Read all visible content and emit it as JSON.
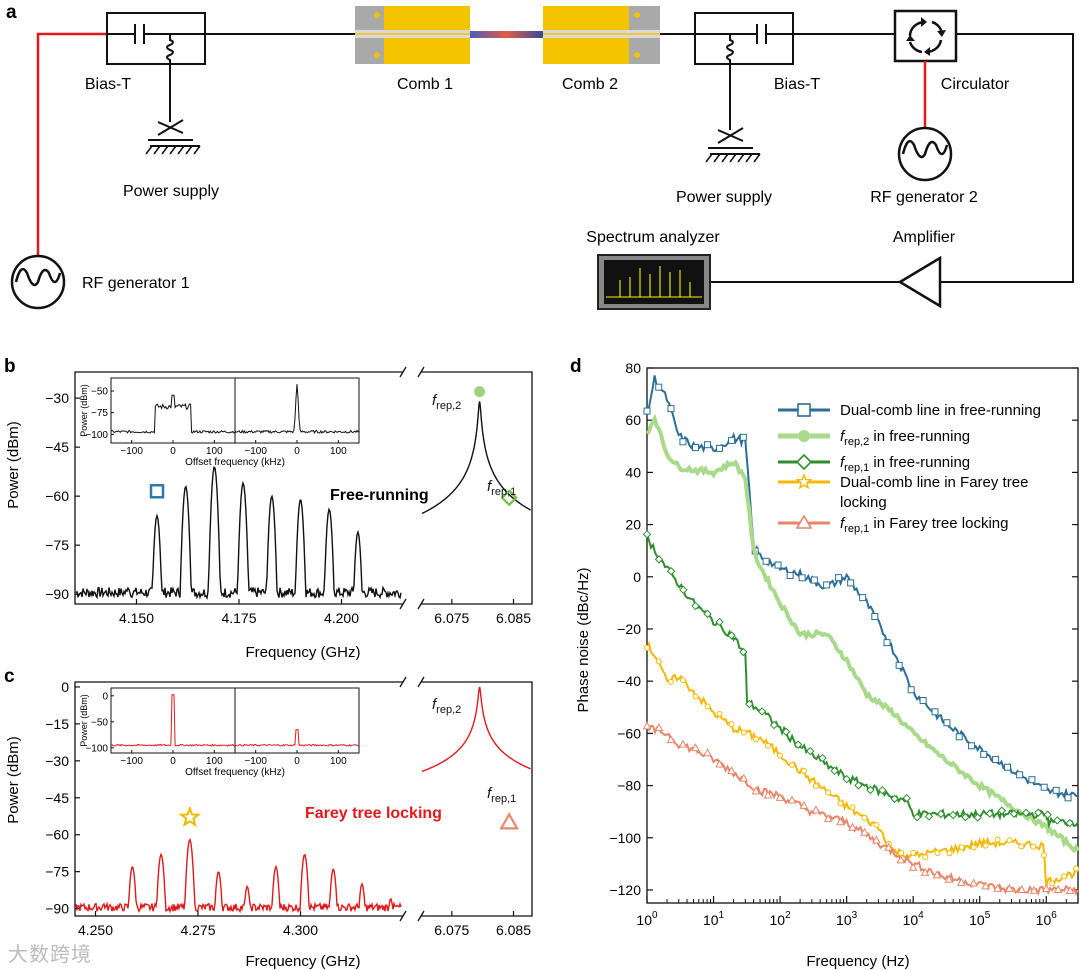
{
  "panel_a": {
    "letter": "a",
    "labels": {
      "bias_t_left": "Bias-T",
      "bias_t_right": "Bias-T",
      "comb1": "Comb 1",
      "comb2": "Comb 2",
      "circulator": "Circulator",
      "power_supply_left": "Power supply",
      "power_supply_right": "Power supply",
      "rf_gen2": "RF generator 2",
      "rf_gen1": "RF generator 1",
      "spectrum_analyzer": "Spectrum analyzer",
      "amplifier": "Amplifier"
    }
  },
  "watermark": "大数跨境",
  "chart_data": [
    {
      "panel": "b",
      "type": "line",
      "annotation": "Free-running",
      "xlabel": "Frequency (GHz)",
      "ylabel": "Power (dBm)",
      "ylim": [
        -93,
        -22
      ],
      "yticks": [
        "-30",
        "-45",
        "-60",
        "-75",
        "-90"
      ],
      "left_segment": {
        "xlim": [
          4.135,
          4.215
        ],
        "xticks": [
          "4.150",
          "4.175",
          "4.200"
        ],
        "peaks_x": [
          4.148,
          4.155,
          4.162,
          4.169,
          4.176,
          4.183,
          4.19,
          4.197,
          4.204
        ],
        "peaks_y": [
          -88,
          -66,
          -57,
          -51,
          -56,
          -60,
          -61,
          -64,
          -71
        ]
      },
      "right_segment": {
        "xlim": [
          6.07,
          6.088
        ],
        "xticks": [
          "6.075",
          "6.085"
        ],
        "peaks_x": [
          6.0795,
          6.0843
        ],
        "peaks_y": [
          -31,
          -65
        ]
      },
      "colors": {
        "line": "#111111",
        "marker_square": "#2e7aa6",
        "marker_diamond": "#6cc24a",
        "marker_dot": "#9fd27b"
      },
      "peak_labels": {
        "f2_main": "f",
        "f2_sub": "rep,2",
        "f1_main": "f",
        "f1_sub": "rep,1"
      },
      "inset": {
        "ylabel": "Power (dBm)",
        "xlabel": "Offset frequency (kHz)",
        "yticks": [
          "-50",
          "-75",
          "-100"
        ],
        "xticks_left": [
          "-100",
          "0",
          "100"
        ],
        "xticks_right": [
          "-100",
          "0",
          "100"
        ]
      }
    },
    {
      "panel": "c",
      "type": "line",
      "annotation": "Farey tree locking",
      "xlabel": "Frequency (GHz)",
      "ylabel": "Power (dBm)",
      "ylim": [
        -93,
        2
      ],
      "yticks": [
        "0",
        "-15",
        "-30",
        "-45",
        "-60",
        "-75",
        "-90"
      ],
      "left_segment": {
        "xlim": [
          4.245,
          4.325
        ],
        "xticks": [
          "4.250",
          "4.275",
          "4.300"
        ],
        "peaks_x": [
          4.252,
          4.259,
          4.266,
          4.273,
          4.28,
          4.287,
          4.294,
          4.301,
          4.308,
          4.315,
          4.322
        ],
        "peaks_y": [
          -88,
          -73,
          -68,
          -62,
          -75,
          -81,
          -73,
          -68,
          -74,
          -80,
          -86
        ]
      },
      "right_segment": {
        "xlim": [
          6.07,
          6.088
        ],
        "xticks": [
          "6.075",
          "6.085"
        ],
        "peaks_x": [
          6.0795,
          6.0843
        ],
        "peaks_y": [
          0,
          -59
        ]
      },
      "colors": {
        "line": "#e0191b",
        "marker_star": "#f5b800",
        "marker_triangle": "#e8876b"
      },
      "peak_labels": {
        "f2_main": "f",
        "f2_sub": "rep,2",
        "f1_main": "f",
        "f1_sub": "rep,1"
      },
      "inset": {
        "ylabel": "Power (dBm)",
        "xlabel": "Offset frequency (kHz)",
        "yticks": [
          "0",
          "-50",
          "-100"
        ],
        "xticks_left": [
          "-100",
          "0",
          "100"
        ],
        "xticks_right": [
          "-100",
          "0",
          "100"
        ]
      }
    },
    {
      "panel": "d",
      "type": "line",
      "xlabel": "Frequency (Hz)",
      "ylabel": "Phase noise (dBc/Hz)",
      "xscale": "log",
      "xlim": [
        1,
        3000000
      ],
      "ylim": [
        -125,
        80
      ],
      "yticks": [
        "80",
        "60",
        "40",
        "20",
        "0",
        "-20",
        "-40",
        "-60",
        "-80",
        "-100",
        "-120"
      ],
      "xticks": [
        {
          "base": "10",
          "exp": "0"
        },
        {
          "base": "10",
          "exp": "1"
        },
        {
          "base": "10",
          "exp": "2"
        },
        {
          "base": "10",
          "exp": "3"
        },
        {
          "base": "10",
          "exp": "4"
        },
        {
          "base": "10",
          "exp": "5"
        },
        {
          "base": "10",
          "exp": "6"
        }
      ],
      "legend_placement": "top-right",
      "series": [
        {
          "legend": "Dual-comb line in free-running",
          "color": "#2b6f96",
          "marker": "square",
          "x": [
            1,
            1.3,
            2,
            3,
            5,
            10,
            20,
            30,
            40,
            50,
            100,
            200,
            500,
            1000,
            2000,
            5000,
            10000,
            30000,
            100000,
            300000,
            1000000,
            3000000
          ],
          "y": [
            62,
            76,
            68,
            54,
            50,
            49,
            53,
            52,
            12,
            8,
            3,
            1,
            -4,
            0,
            -10,
            -28,
            -44,
            -56,
            -66,
            -74,
            -82,
            -84
          ]
        },
        {
          "legend_main": "f",
          "legend_sub": "rep,2",
          "legend_tail": " in free-running",
          "color": "#a9d98a",
          "marker": "circle",
          "x": [
            1,
            1.3,
            2,
            3,
            5,
            10,
            20,
            30,
            40,
            50,
            100,
            200,
            500,
            1000,
            2000,
            5000,
            10000,
            30000,
            100000,
            300000,
            1000000,
            3000000
          ],
          "y": [
            55,
            61,
            47,
            42,
            41,
            40,
            44,
            38,
            10,
            4,
            -10,
            -22,
            -22,
            -32,
            -45,
            -52,
            -60,
            -70,
            -80,
            -88,
            -96,
            -105
          ]
        },
        {
          "legend_main": "f",
          "legend_sub": "rep,1",
          "legend_tail": " in free-running",
          "color": "#2f8f2f",
          "marker": "diamond",
          "x": [
            1,
            2,
            5,
            10,
            20,
            30,
            32,
            50,
            100,
            200,
            500,
            1000,
            3000,
            8000,
            10000,
            30000,
            100000,
            1000000,
            1100000,
            3000000
          ],
          "y": [
            15,
            3,
            -10,
            -17,
            -23,
            -30,
            -48,
            -51,
            -58,
            -65,
            -72,
            -77,
            -82,
            -86,
            -91,
            -91,
            -91,
            -91,
            -94,
            -94
          ]
        },
        {
          "legend": "Dual-comb line in Farey tree locking",
          "color": "#f5b800",
          "marker": "star",
          "x": [
            1,
            1.5,
            2,
            3,
            5,
            10,
            20,
            50,
            100,
            300,
            1000,
            3000,
            5000,
            10000,
            50000,
            100000,
            300000,
            900000,
            1000000,
            3000000
          ],
          "y": [
            -26,
            -32,
            -41,
            -38,
            -44,
            -52,
            -58,
            -62,
            -68,
            -78,
            -88,
            -96,
            -105,
            -107,
            -104,
            -102,
            -102,
            -103,
            -117,
            -113
          ]
        },
        {
          "legend_main": "f",
          "legend_sub": "rep,1",
          "legend_tail": " in Farey tree locking",
          "color": "#e7866b",
          "marker": "triangle",
          "x": [
            1,
            2,
            3,
            5,
            10,
            20,
            50,
            100,
            300,
            1000,
            3000,
            10000,
            30000,
            100000,
            300000,
            1000000,
            3000000
          ],
          "y": [
            -58,
            -60,
            -64,
            -66,
            -70,
            -75,
            -82,
            -84,
            -90,
            -94,
            -102,
            -110,
            -115,
            -118,
            -120,
            -120,
            -120
          ]
        }
      ]
    }
  ]
}
